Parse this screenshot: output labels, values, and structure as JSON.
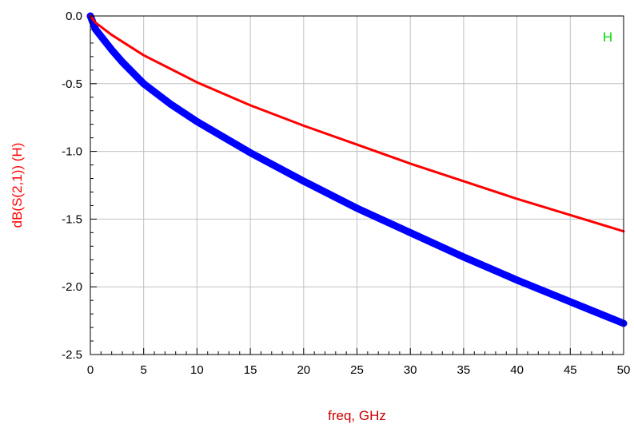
{
  "chart_data": {
    "type": "line",
    "xlabel": "freq, GHz",
    "ylabel": "dB(S(2,1))  (H)",
    "legend": "H",
    "xlim": [
      0,
      50
    ],
    "ylim": [
      -2.5,
      0.0
    ],
    "x_ticks": [
      "0",
      "5",
      "10",
      "15",
      "20",
      "25",
      "30",
      "35",
      "40",
      "45",
      "50"
    ],
    "y_ticks": [
      "0.0",
      "-0.5",
      "-1.0",
      "-1.5",
      "-2.0",
      "-2.5"
    ],
    "grid": true,
    "series": [
      {
        "color": "#ff0000",
        "x": [
          0,
          0.5,
          1,
          2,
          3,
          5,
          7.5,
          10,
          15,
          20,
          25,
          30,
          35,
          40,
          45,
          50
        ],
        "y": [
          0.0,
          -0.05,
          -0.08,
          -0.14,
          -0.19,
          -0.29,
          -0.39,
          -0.49,
          -0.66,
          -0.81,
          -0.95,
          -1.09,
          -1.22,
          -1.35,
          -1.47,
          -1.59
        ]
      },
      {
        "color": "#0000ff",
        "x": [
          0,
          0.5,
          1,
          2,
          3,
          5,
          7.5,
          10,
          15,
          20,
          25,
          30,
          35,
          40,
          45,
          50
        ],
        "y": [
          0.0,
          -0.1,
          -0.15,
          -0.25,
          -0.34,
          -0.5,
          -0.65,
          -0.78,
          -1.01,
          -1.22,
          -1.42,
          -1.6,
          -1.78,
          -1.95,
          -2.11,
          -2.27
        ]
      }
    ]
  }
}
